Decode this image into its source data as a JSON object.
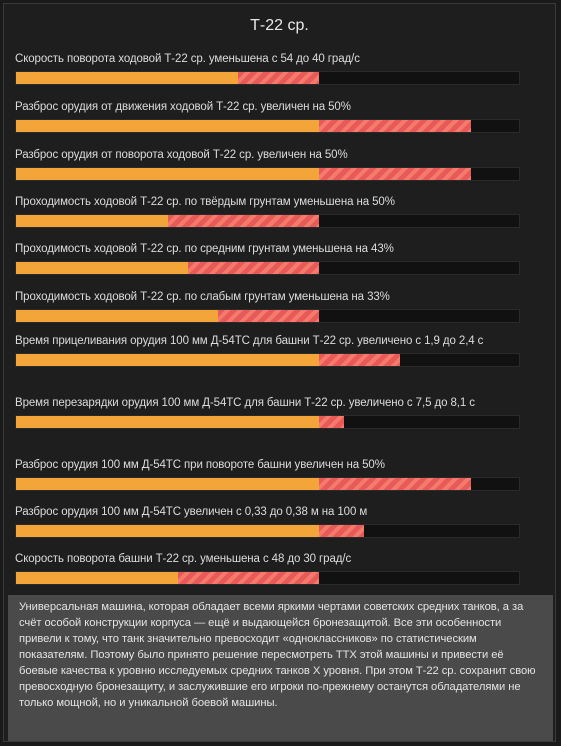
{
  "title": "Т-22 ср.",
  "stats": [
    {
      "label": "Скорость поворота ходовой Т-22 ср. уменьшена с 54 до 40 град/с",
      "base": 0.44,
      "delta": 0.16,
      "type": "reduced"
    },
    {
      "label": "Разброс орудия от движения ходовой Т-22 ср. увеличен на 50%",
      "base": 0.6,
      "delta": 0.3,
      "type": "increased"
    },
    {
      "label": "Разброс орудия от поворота ходовой Т-22 ср. увеличен на 50%",
      "base": 0.6,
      "delta": 0.3,
      "type": "increased"
    },
    {
      "label": "Проходимость ходовой Т-22 ср. по твёрдым грунтам уменьшена на 50%",
      "base": 0.3,
      "delta": 0.3,
      "type": "reduced"
    },
    {
      "label": "Проходимость ходовой Т-22 ср. по средним грунтам уменьшена на 43%",
      "base": 0.34,
      "delta": 0.26,
      "type": "reduced"
    },
    {
      "label": "Проходимость ходовой Т-22 ср. по слабым грунтам уменьшена на 33%",
      "base": 0.4,
      "delta": 0.2,
      "type": "reduced"
    },
    {
      "label": "Время прицеливания орудия 100 мм Д-54ТС для башни Т-22 ср. увеличено с 1,9 до 2,4 с",
      "base": 0.6,
      "delta": 0.16,
      "type": "increased"
    },
    {
      "label": "Время перезарядки орудия 100 мм Д-54ТС для башни Т-22 ср. увеличено с 7,5 до 8,1 с",
      "base": 0.6,
      "delta": 0.05,
      "type": "increased"
    },
    {
      "label": "Разброс орудия 100 мм Д-54ТС при повороте башни увеличен на 50%",
      "base": 0.6,
      "delta": 0.3,
      "type": "increased"
    },
    {
      "label": "Разброс орудия 100 мм Д-54ТС увеличен с 0,33 до 0,38 м на 100 м",
      "base": 0.6,
      "delta": 0.09,
      "type": "increased"
    },
    {
      "label": "Скорость поворота башни Т-22 ср. уменьшена с 48 до 30 град/с",
      "base": 0.32,
      "delta": 0.28,
      "type": "reduced"
    }
  ],
  "description": "Универсальная машина, которая обладает всеми яркими чертами советских средних танков, а за счёт особой конструкции корпуса — ещё и выдающейся бронезащитой. Все эти особенности привели к тому, что танк значительно превосходит «одноклассников» по статистическим показателям. Поэтому было принято решение пересмотреть ТТХ этой машины и привести её боевые качества к уровню исследуемых средних танков X уровня. При этом Т-22 ср. сохранит свою превосходную бронезащиту, и заслужившие его игроки по-прежнему останутся обладателями не только мощной, но и уникальной боевой машины.",
  "colors": {
    "base": "#f4a53a",
    "delta": "#e85a5a",
    "track": "#111111"
  }
}
